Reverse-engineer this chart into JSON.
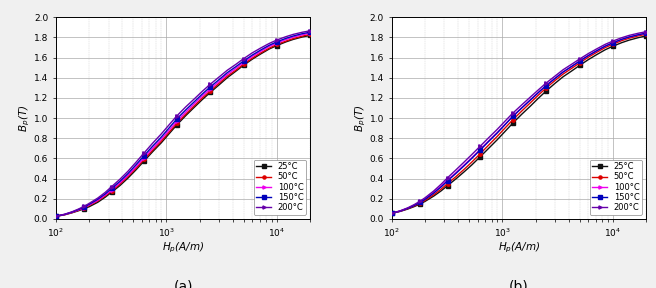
{
  "title_a": "(a)",
  "title_b": "(b)",
  "xlabel_a": "$H_p$(A/m)",
  "xlabel_b": "$H_p$(A/m)",
  "ylabel_a": "$B_p$(T)",
  "ylabel_b": "$B_p$(T)",
  "xlim": [
    100,
    20000
  ],
  "ylim": [
    0.0,
    2.0
  ],
  "yticks": [
    0.0,
    0.2,
    0.4,
    0.6,
    0.8,
    1.0,
    1.2,
    1.4,
    1.6,
    1.8,
    2.0
  ],
  "legend_labels": [
    "25°C",
    "50°C",
    "100°C",
    "150°C",
    "200°C"
  ],
  "colors_a": [
    "#111111",
    "#dd0000",
    "#ee00ee",
    "#0000bb",
    "#6600aa"
  ],
  "colors_b": [
    "#111111",
    "#dd0000",
    "#ee00ee",
    "#0000bb",
    "#6600aa"
  ],
  "markers": [
    "s",
    "o",
    ">",
    "s",
    ">"
  ],
  "H_50Hz": [
    100,
    120,
    140,
    160,
    180,
    200,
    240,
    280,
    320,
    380,
    450,
    530,
    630,
    750,
    900,
    1060,
    1250,
    1500,
    1800,
    2120,
    2500,
    3000,
    3550,
    4250,
    5000,
    6000,
    7100,
    8500,
    10000,
    12000,
    14000,
    17000,
    20000
  ],
  "B_50Hz_25": [
    0.025,
    0.04,
    0.06,
    0.08,
    0.1,
    0.12,
    0.165,
    0.215,
    0.265,
    0.33,
    0.405,
    0.485,
    0.575,
    0.665,
    0.755,
    0.845,
    0.935,
    1.025,
    1.11,
    1.185,
    1.255,
    1.33,
    1.4,
    1.465,
    1.525,
    1.585,
    1.635,
    1.685,
    1.72,
    1.755,
    1.78,
    1.805,
    1.82
  ],
  "B_50Hz_50": [
    0.025,
    0.042,
    0.063,
    0.085,
    0.108,
    0.132,
    0.178,
    0.228,
    0.278,
    0.345,
    0.42,
    0.5,
    0.59,
    0.68,
    0.77,
    0.86,
    0.95,
    1.04,
    1.125,
    1.2,
    1.27,
    1.345,
    1.415,
    1.475,
    1.535,
    1.595,
    1.645,
    1.693,
    1.73,
    1.763,
    1.788,
    1.813,
    1.83
  ],
  "B_50Hz_100": [
    0.025,
    0.043,
    0.065,
    0.088,
    0.112,
    0.138,
    0.185,
    0.237,
    0.288,
    0.357,
    0.433,
    0.515,
    0.607,
    0.698,
    0.79,
    0.88,
    0.97,
    1.06,
    1.145,
    1.22,
    1.29,
    1.363,
    1.432,
    1.493,
    1.552,
    1.612,
    1.661,
    1.71,
    1.745,
    1.778,
    1.803,
    1.827,
    1.843
  ],
  "B_50Hz_150": [
    0.026,
    0.044,
    0.067,
    0.092,
    0.117,
    0.144,
    0.195,
    0.248,
    0.302,
    0.372,
    0.45,
    0.535,
    0.628,
    0.72,
    0.812,
    0.903,
    0.994,
    1.082,
    1.165,
    1.24,
    1.31,
    1.382,
    1.45,
    1.51,
    1.567,
    1.626,
    1.674,
    1.722,
    1.757,
    1.79,
    1.814,
    1.838,
    1.852
  ],
  "B_50Hz_200": [
    0.027,
    0.046,
    0.07,
    0.097,
    0.124,
    0.153,
    0.207,
    0.263,
    0.32,
    0.393,
    0.473,
    0.56,
    0.655,
    0.75,
    0.843,
    0.934,
    1.024,
    1.112,
    1.193,
    1.267,
    1.337,
    1.408,
    1.474,
    1.533,
    1.59,
    1.648,
    1.694,
    1.74,
    1.775,
    1.807,
    1.83,
    1.852,
    1.866
  ],
  "H_200Hz": [
    100,
    120,
    140,
    160,
    180,
    200,
    240,
    280,
    320,
    380,
    450,
    530,
    630,
    750,
    900,
    1060,
    1250,
    1500,
    1800,
    2120,
    2500,
    3000,
    3550,
    4250,
    5000,
    6000,
    7100,
    8500,
    10000,
    12000,
    14000,
    17000,
    20000
  ],
  "B_200Hz_25": [
    0.055,
    0.075,
    0.098,
    0.122,
    0.147,
    0.173,
    0.226,
    0.278,
    0.33,
    0.396,
    0.465,
    0.535,
    0.615,
    0.698,
    0.785,
    0.868,
    0.952,
    1.038,
    1.12,
    1.197,
    1.27,
    1.345,
    1.41,
    1.468,
    1.522,
    1.58,
    1.628,
    1.677,
    1.713,
    1.748,
    1.773,
    1.798,
    1.815
  ],
  "B_200Hz_50": [
    0.055,
    0.077,
    0.102,
    0.128,
    0.155,
    0.183,
    0.24,
    0.295,
    0.35,
    0.418,
    0.49,
    0.563,
    0.645,
    0.73,
    0.818,
    0.902,
    0.985,
    1.07,
    1.153,
    1.228,
    1.3,
    1.373,
    1.437,
    1.494,
    1.547,
    1.604,
    1.651,
    1.699,
    1.733,
    1.768,
    1.792,
    1.816,
    1.832
  ],
  "B_200Hz_100": [
    0.055,
    0.079,
    0.107,
    0.136,
    0.167,
    0.198,
    0.263,
    0.325,
    0.385,
    0.458,
    0.533,
    0.607,
    0.688,
    0.772,
    0.857,
    0.939,
    1.021,
    1.103,
    1.183,
    1.255,
    1.325,
    1.395,
    1.458,
    1.513,
    1.565,
    1.62,
    1.666,
    1.713,
    1.747,
    1.781,
    1.804,
    1.827,
    1.843
  ],
  "B_200Hz_150": [
    0.055,
    0.078,
    0.105,
    0.133,
    0.163,
    0.193,
    0.256,
    0.317,
    0.377,
    0.45,
    0.525,
    0.6,
    0.682,
    0.766,
    0.852,
    0.935,
    1.018,
    1.1,
    1.18,
    1.253,
    1.323,
    1.393,
    1.457,
    1.513,
    1.565,
    1.62,
    1.666,
    1.713,
    1.747,
    1.781,
    1.804,
    1.827,
    1.843
  ],
  "B_200Hz_200": [
    0.056,
    0.081,
    0.11,
    0.142,
    0.175,
    0.209,
    0.277,
    0.344,
    0.408,
    0.485,
    0.562,
    0.638,
    0.72,
    0.803,
    0.888,
    0.97,
    1.051,
    1.131,
    1.21,
    1.28,
    1.349,
    1.417,
    1.48,
    1.535,
    1.586,
    1.64,
    1.685,
    1.731,
    1.764,
    1.797,
    1.82,
    1.842,
    1.857
  ],
  "background_color": "#ffffff",
  "grid_major_color": "#aaaaaa",
  "grid_minor_color": "#cccccc",
  "linewidth": 1.0,
  "markersize": 2.5,
  "fig_bg": "#f0f0f0"
}
